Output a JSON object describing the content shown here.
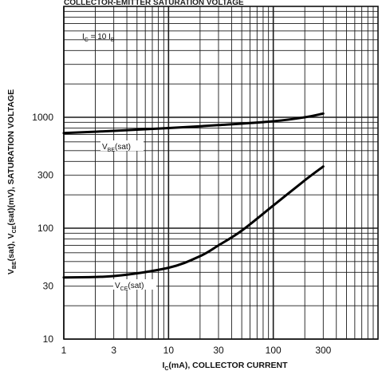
{
  "chart_data": {
    "type": "line",
    "title": "COLLECTOR-EMITTER SATURATION VOLTAGE",
    "annotation": "I₀ = 10 Iʙ",
    "x_scale": "log",
    "y_scale": "log",
    "xlim": [
      1,
      1000
    ],
    "ylim": [
      10,
      10000
    ],
    "xlabel": {
      "main": "I",
      "sub": "C",
      "rest": "(mA), COLLECTOR CURRENT"
    },
    "ylabel": {
      "p1": "V",
      "s1": "BE",
      "p2": "(sat), V",
      "s2": "CE",
      "p3": "(sat)(mV), SATURATION VOLTAGE"
    },
    "x_ticks": [
      {
        "value": 1,
        "label": "1"
      },
      {
        "value": 3,
        "label": "3"
      },
      {
        "value": 10,
        "label": "10"
      },
      {
        "value": 30,
        "label": "30"
      },
      {
        "value": 100,
        "label": "100"
      },
      {
        "value": 300,
        "label": "300"
      }
    ],
    "y_ticks": [
      {
        "value": 10,
        "label": "10"
      },
      {
        "value": 30,
        "label": "30"
      },
      {
        "value": 100,
        "label": "100"
      },
      {
        "value": 300,
        "label": "300"
      },
      {
        "value": 1000,
        "label": "1000"
      }
    ],
    "series": [
      {
        "name_main": "V",
        "name_sub": "BE",
        "name_rest": "(sat)",
        "x": [
          1,
          3,
          10,
          30,
          100,
          200,
          300
        ],
        "y": [
          720,
          755,
          800,
          850,
          920,
          1000,
          1080
        ]
      },
      {
        "name_main": "V",
        "name_sub": "CE",
        "name_rest": "(sat)",
        "x": [
          1,
          3,
          10,
          20,
          30,
          50,
          100,
          200,
          300
        ],
        "y": [
          36,
          37,
          44,
          56,
          70,
          95,
          160,
          270,
          360
        ]
      }
    ],
    "annotation_text": {
      "main": "I",
      "sub1": "C",
      "mid": " = 10 I",
      "sub2": "B"
    }
  }
}
